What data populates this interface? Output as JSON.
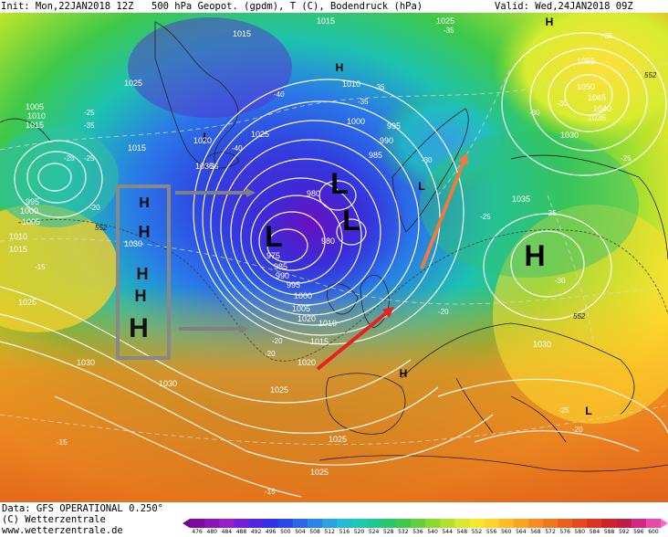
{
  "header": {
    "init": "Init: Mon,22JAN2018 12Z",
    "title": "500 hPa Geopot. (gpdm), T (C), Bodendruck (hPa)",
    "valid": "Valid: Wed,24JAN2018 09Z"
  },
  "footer": {
    "data_line": "Data: GFS OPERATIONAL 0.250°",
    "copyright_line": "(C) Wetterzentrale",
    "url_line": "www.wetterzentrale.de"
  },
  "scale": {
    "labels": [
      "476",
      "480",
      "484",
      "488",
      "492",
      "496",
      "500",
      "504",
      "508",
      "512",
      "516",
      "520",
      "524",
      "528",
      "532",
      "536",
      "540",
      "544",
      "548",
      "552",
      "556",
      "560",
      "564",
      "568",
      "572",
      "576",
      "580",
      "584",
      "588",
      "592",
      "596",
      "600"
    ]
  },
  "colors": {
    "geopotential_low": "#7a10b0",
    "geopotential_mid": "#1ec2b0",
    "geopotential_high": "#ffe82a",
    "geopotential_top": "#e0201a",
    "isobar": "#ffffff",
    "annotation_box": "#888888",
    "arrow_gray": "#808080",
    "arrow_red": "#e82020",
    "arrow_orange": "#f07a3a"
  },
  "map": {
    "pressure_labels": [
      "1015",
      "1015",
      "1025",
      "1005",
      "1010",
      "1015",
      "1025",
      "1010",
      "1020",
      "1015",
      "1025",
      "1055",
      "1050",
      "1045",
      "1040",
      "1035",
      "1030",
      "1030",
      "1035",
      "1035",
      "1020",
      "1000",
      "995",
      "990",
      "985",
      "980",
      "980",
      "975",
      "985",
      "990",
      "995",
      "1000",
      "1005",
      "1010",
      "1015",
      "1020",
      "1025",
      "1030",
      "1025",
      "995",
      "1000",
      "1005",
      "1010",
      "1015",
      "1030",
      "1025",
      "1030",
      "1025"
    ],
    "isobar_values": [
      "1015",
      "1020",
      "1025",
      "1030"
    ],
    "temperature_labels": [
      "-35",
      "-25",
      "-40",
      "-35",
      "-35",
      "-35",
      "-40",
      "-30",
      "-35",
      "-35",
      "-25",
      "-25",
      "-20",
      "-30",
      "-30",
      "-35",
      "-25",
      "-20",
      "-15",
      "-15",
      "-20",
      "-25",
      "-20",
      "-15",
      "-30",
      "-20",
      "-25"
    ],
    "pressure_centers": [
      "H",
      "H",
      "L",
      "L",
      "L",
      "L",
      "H",
      "L",
      "H",
      "H",
      "L",
      "L"
    ],
    "annotation_letters": [
      "H",
      "H",
      "H",
      "H",
      "H"
    ],
    "contour_labels": [
      "552",
      "552",
      "552"
    ]
  }
}
